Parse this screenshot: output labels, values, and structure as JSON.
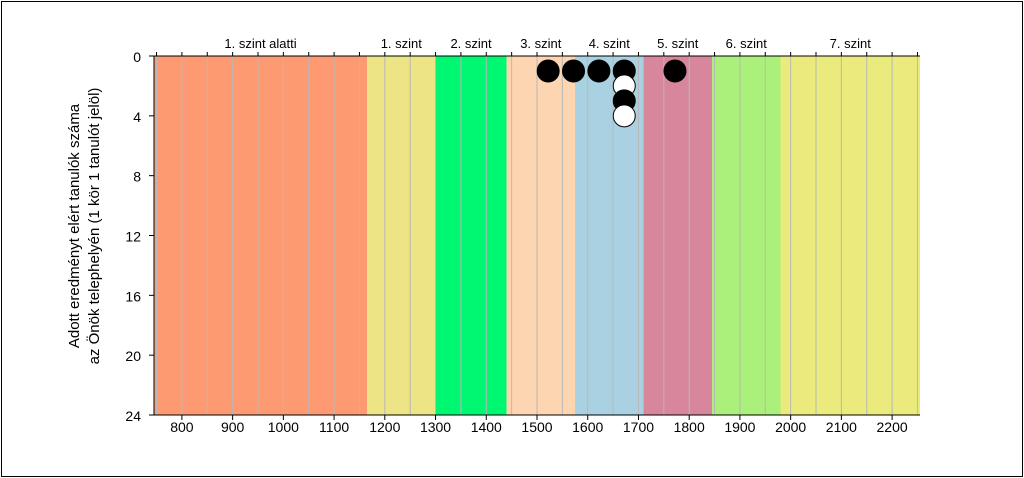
{
  "chart_data": {
    "type": "scatter",
    "ylabel_lines": [
      "Adott eredményt elért tanulók száma",
      "az Önök telephelyén (1 kör 1 tanulót jelöl)"
    ],
    "xlim": [
      745,
      2255
    ],
    "ylim": [
      24,
      0
    ],
    "y_inverted": true,
    "x_ticks": [
      800,
      900,
      1000,
      1100,
      1200,
      1300,
      1400,
      1500,
      1600,
      1700,
      1800,
      1900,
      2000,
      2100,
      2200
    ],
    "y_ticks": [
      0,
      4,
      8,
      12,
      16,
      20,
      24
    ],
    "grid_step": 50,
    "bands": [
      {
        "label": "1. szint alatti",
        "from": 745,
        "to": 1165,
        "color": "#fd9a72"
      },
      {
        "label": "1. szint",
        "from": 1165,
        "to": 1300,
        "color": "#ede585"
      },
      {
        "label": "2. szint",
        "from": 1300,
        "to": 1440,
        "color": "#00f772"
      },
      {
        "label": "3. szint",
        "from": 1440,
        "to": 1575,
        "color": "#fdd5b0"
      },
      {
        "label": "4. szint",
        "from": 1575,
        "to": 1710,
        "color": "#a9d1e2"
      },
      {
        "label": "5. szint",
        "from": 1710,
        "to": 1845,
        "color": "#d7869b"
      },
      {
        "label": "6. szint",
        "from": 1845,
        "to": 1980,
        "color": "#aaf07a"
      },
      {
        "label": "7. szint",
        "from": 1980,
        "to": 2255,
        "color": "#ebeb7d"
      }
    ],
    "points": [
      {
        "x": 1522,
        "count": 1,
        "color": "#000000"
      },
      {
        "x": 1572,
        "count": 1,
        "color": "#000000"
      },
      {
        "x": 1622,
        "count": 1,
        "color": "#000000"
      },
      {
        "x": 1672,
        "count": 1,
        "color": "#000000"
      },
      {
        "x": 1672,
        "count": 2,
        "color": "#ffffff"
      },
      {
        "x": 1672,
        "count": 3,
        "color": "#000000"
      },
      {
        "x": 1672,
        "count": 4,
        "color": "#ffffff"
      },
      {
        "x": 1772,
        "count": 1,
        "color": "#000000"
      }
    ]
  }
}
